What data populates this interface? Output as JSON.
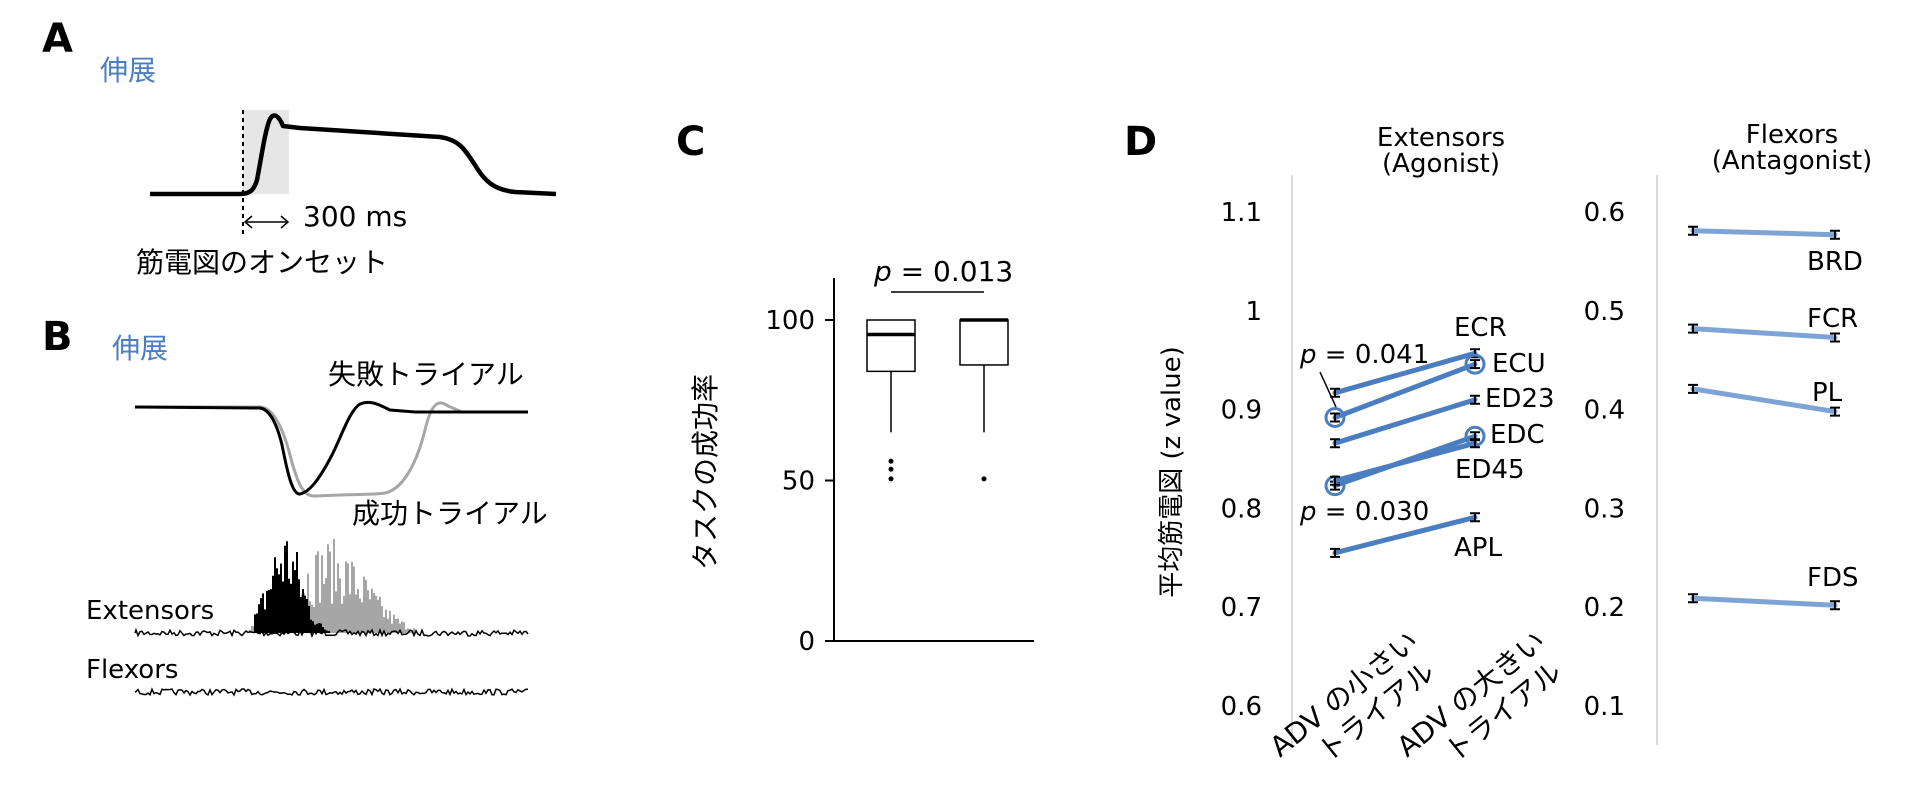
{
  "panels": {
    "A": {
      "letter": "A",
      "condition_label": "伸展",
      "duration_label": "300 ms",
      "onset_label": "筋電図のオンセット"
    },
    "B": {
      "letter": "B",
      "condition_label": "伸展",
      "fail_label": "失敗トライアル",
      "success_label": "成功トライアル",
      "extensors_label": "Extensors",
      "flexors_label": "Flexors"
    },
    "C": {
      "letter": "C",
      "ylabel": "タスクの成功率",
      "p_prefix": "p",
      "p_value": " = 0.013"
    },
    "D": {
      "letter": "D",
      "ylabel": "平均筋電図 (z value)",
      "xticks": [
        "ADV の小さい\nトライアル",
        "ADV の大きい\nトライアル"
      ],
      "xtick1_line1": "ADV の小さい",
      "xtick1_line2": "トライアル",
      "xtick2_line1": "ADV の大きい",
      "xtick2_line2": "トライアル",
      "p1_prefix": "p",
      "p1_value": " = 0.041",
      "p2_prefix": "p",
      "p2_value": " = 0.030"
    }
  },
  "colors": {
    "line_blue": "#4a7ec0",
    "line_blue_light": "#7ea4d6",
    "trace_black": "#000000",
    "trace_gray": "#a6a6a6",
    "onset_shade": "#e6e6e6"
  },
  "chart_data": [
    {
      "type": "box",
      "panel": "C",
      "ylabel": "タスクの成功率",
      "ylim": [
        0,
        100
      ],
      "yticks": [
        0,
        50,
        100
      ],
      "boxes": [
        {
          "q1": 84,
          "median": 95.5,
          "q3": 100,
          "whisker_low": 65,
          "whisker_high": 100,
          "outliers": [
            56,
            53.5,
            50.5
          ]
        },
        {
          "q1": 86,
          "median": 100,
          "q3": 100,
          "whisker_low": 65,
          "whisker_high": 100,
          "outliers": [
            50.5
          ]
        }
      ],
      "annotation": "p = 0.013"
    },
    {
      "type": "line",
      "panel": "D",
      "title": "Extensors\n(Agonist)",
      "title_line1": "Extensors",
      "title_line2": "(Agonist)",
      "ylabel": "平均筋電図 (z value)",
      "ylim": [
        0.6,
        1.1
      ],
      "yticks": [
        "0.6",
        "0.7",
        "0.8",
        "0.9",
        "1",
        "1.1"
      ],
      "x": [
        "ADV の小さい トライアル",
        "ADV の大きい トライアル"
      ],
      "series": [
        {
          "name": "ECR",
          "values": [
            0.917,
            0.957
          ],
          "significant": false
        },
        {
          "name": "ECU",
          "values": [
            0.892,
            0.946
          ],
          "significant": true
        },
        {
          "name": "ED23",
          "values": [
            0.866,
            0.91
          ],
          "significant": false
        },
        {
          "name": "EDC",
          "values": [
            0.823,
            0.873
          ],
          "significant": true
        },
        {
          "name": "ED45",
          "values": [
            0.828,
            0.866
          ],
          "significant": false
        },
        {
          "name": "APL",
          "values": [
            0.755,
            0.791
          ],
          "significant": false
        }
      ],
      "annotations": [
        "p = 0.041",
        "p = 0.030"
      ]
    },
    {
      "type": "line",
      "panel": "D",
      "title": "Flexors\n(Antagonist)",
      "title_line1": "Flexors",
      "title_line2": "(Antagonist)",
      "ylim": [
        0.1,
        0.6
      ],
      "yticks": [
        "0.1",
        "0.2",
        "0.3",
        "0.4",
        "0.5",
        "0.6"
      ],
      "x": [
        "ADV の小さい トライアル",
        "ADV の大きい トライアル"
      ],
      "series": [
        {
          "name": "BRD",
          "values": [
            0.581,
            0.577
          ]
        },
        {
          "name": "FCR",
          "values": [
            0.482,
            0.473
          ]
        },
        {
          "name": "PL",
          "values": [
            0.421,
            0.398
          ]
        },
        {
          "name": "FDS",
          "values": [
            0.209,
            0.202
          ]
        }
      ]
    }
  ]
}
